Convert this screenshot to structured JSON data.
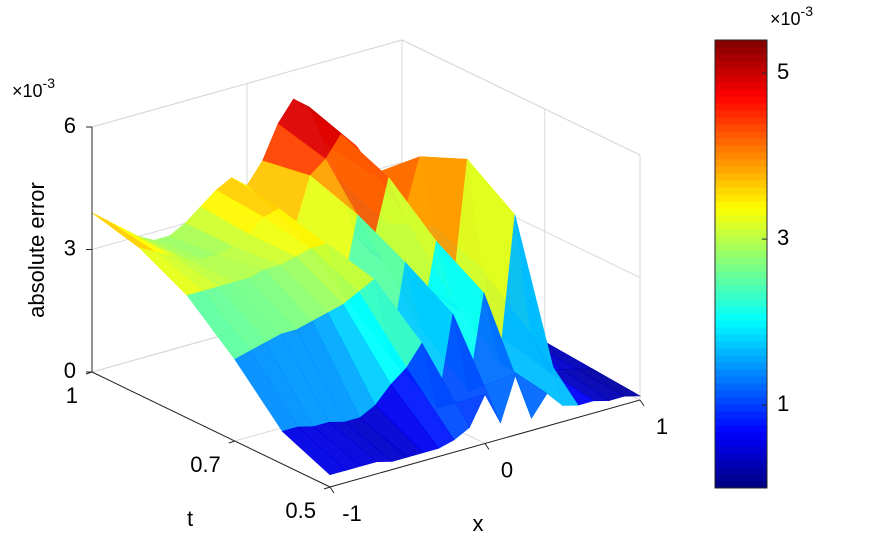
{
  "chart_data": {
    "type": "surface",
    "x": [
      -1,
      -0.9,
      -0.8,
      -0.7,
      -0.6,
      -0.5,
      -0.4,
      -0.3,
      -0.2,
      -0.1,
      0,
      0.1,
      0.2,
      0.3,
      0.4,
      0.5,
      0.6,
      0.7,
      0.8,
      0.9,
      1
    ],
    "t": [
      0.5,
      0.6,
      0.7,
      0.8,
      0.9,
      1
    ],
    "z": [
      [
        0.3,
        0.3,
        0.3,
        0.3,
        0.2,
        0.2,
        0.2,
        0.2,
        0.3,
        0.5,
        1.2,
        0.4,
        1.5,
        0.3,
        0.8,
        0.4,
        0.3,
        0.3,
        0.2,
        0.2,
        0.1
      ],
      [
        0.8,
        0.8,
        0.7,
        0.7,
        0.6,
        0.6,
        0.8,
        1.2,
        1.5,
        2.0,
        0.3,
        2.5,
        0.5,
        2.8,
        1.0,
        4.5,
        1.5,
        0.5,
        0.4,
        0.3,
        0.2
      ],
      [
        2.0,
        2.1,
        2.2,
        2.3,
        2.3,
        2.4,
        2.5,
        2.6,
        2.8,
        3.0,
        1.0,
        3.2,
        1.5,
        3.5,
        2.0,
        5.3,
        2.5,
        0.8,
        0.5,
        0.4,
        0.3
      ],
      [
        3.0,
        3.0,
        3.0,
        3.0,
        3.0,
        3.1,
        3.1,
        3.2,
        3.3,
        3.3,
        2.0,
        3.8,
        3.0,
        4.5,
        3.5,
        4.8,
        3.0,
        1.0,
        0.6,
        0.5,
        0.4
      ],
      [
        3.6,
        3.4,
        3.2,
        3.0,
        2.9,
        2.9,
        3.0,
        3.2,
        3.5,
        3.6,
        3.0,
        4.2,
        4.5,
        5.0,
        4.6,
        3.8,
        2.5,
        1.2,
        0.8,
        0.6,
        0.5
      ],
      [
        3.9,
        3.6,
        3.3,
        3.0,
        2.8,
        2.8,
        3.0,
        3.3,
        3.6,
        3.8,
        3.5,
        4.0,
        4.8,
        5.3,
        5.0,
        4.0,
        3.0,
        1.5,
        1.0,
        0.7,
        0.5
      ]
    ],
    "xlim": [
      -1,
      1
    ],
    "ylim": [
      0.5,
      1
    ],
    "zlim": [
      0,
      6
    ],
    "xticks": [
      -1,
      0,
      1
    ],
    "yticks": [
      0.5,
      0.7,
      1
    ],
    "zticks": [
      0,
      3,
      6
    ],
    "xlabel": "x",
    "ylabel": "t",
    "zlabel": "absolute error",
    "z_multiplier": {
      "base": "×10",
      "exponent": "-3"
    },
    "colormap": "jet",
    "grid": true,
    "colorbar": {
      "clim": [
        0,
        5.4
      ],
      "ticks": [
        1,
        3,
        5
      ],
      "multiplier": {
        "base": "×10",
        "exponent": "-3"
      }
    }
  }
}
